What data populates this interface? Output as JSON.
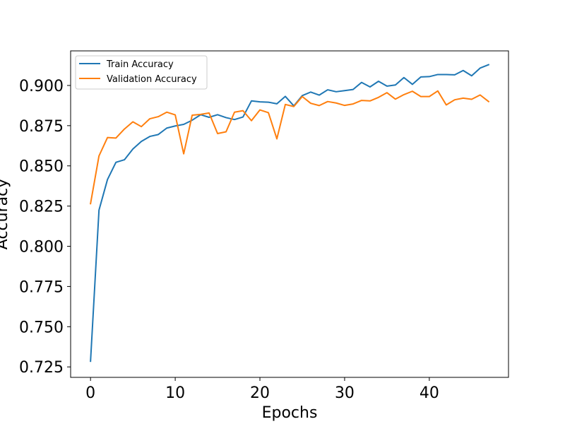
{
  "chart_data": {
    "type": "line",
    "title": "",
    "xlabel": "Epochs",
    "ylabel": "Accuracy",
    "xlim": [
      -2.35,
      49.35
    ],
    "ylim": [
      0.7185,
      0.9215
    ],
    "xticks": [
      0,
      10,
      20,
      30,
      40
    ],
    "yticks": [
      0.725,
      0.75,
      0.775,
      0.8,
      0.825,
      0.85,
      0.875,
      0.9
    ],
    "ytick_labels": [
      "0.725",
      "0.750",
      "0.775",
      "0.800",
      "0.825",
      "0.850",
      "0.875",
      "0.900"
    ],
    "grid": false,
    "legend": "upper-left",
    "x": [
      0,
      1,
      2,
      3,
      4,
      5,
      6,
      7,
      8,
      9,
      10,
      11,
      12,
      13,
      14,
      15,
      16,
      17,
      18,
      19,
      20,
      21,
      22,
      23,
      24,
      25,
      26,
      27,
      28,
      29,
      30,
      31,
      32,
      33,
      34,
      35,
      36,
      37,
      38,
      39,
      40,
      41,
      42,
      43,
      44,
      45,
      46,
      47
    ],
    "series": [
      {
        "name": "Train Accuracy",
        "color": "#1f77b4",
        "values": [
          0.7285,
          0.8225,
          0.8415,
          0.8522,
          0.8538,
          0.8605,
          0.8652,
          0.8683,
          0.8695,
          0.8735,
          0.8748,
          0.8758,
          0.8784,
          0.8818,
          0.8802,
          0.8818,
          0.88,
          0.8788,
          0.8804,
          0.8904,
          0.8898,
          0.8896,
          0.8886,
          0.8932,
          0.8873,
          0.8937,
          0.8959,
          0.894,
          0.8973,
          0.8961,
          0.8968,
          0.8975,
          0.9019,
          0.8991,
          0.9026,
          0.8996,
          0.9003,
          0.9049,
          0.9007,
          0.9053,
          0.9055,
          0.9068,
          0.9068,
          0.9066,
          0.9093,
          0.906,
          0.9108,
          0.9129
        ]
      },
      {
        "name": "Validation Accuracy",
        "color": "#ff7f0e",
        "values": [
          0.8265,
          0.8562,
          0.8676,
          0.8673,
          0.8729,
          0.8774,
          0.8744,
          0.8793,
          0.8806,
          0.8834,
          0.8817,
          0.8575,
          0.8815,
          0.882,
          0.8829,
          0.8701,
          0.8712,
          0.8834,
          0.8843,
          0.8781,
          0.8848,
          0.8831,
          0.8668,
          0.8882,
          0.8869,
          0.8931,
          0.8889,
          0.8875,
          0.89,
          0.8891,
          0.8876,
          0.8885,
          0.8907,
          0.8904,
          0.8926,
          0.8955,
          0.8915,
          0.8943,
          0.8964,
          0.8931,
          0.8931,
          0.8966,
          0.8879,
          0.8911,
          0.8921,
          0.8914,
          0.8941,
          0.89
        ]
      }
    ]
  }
}
